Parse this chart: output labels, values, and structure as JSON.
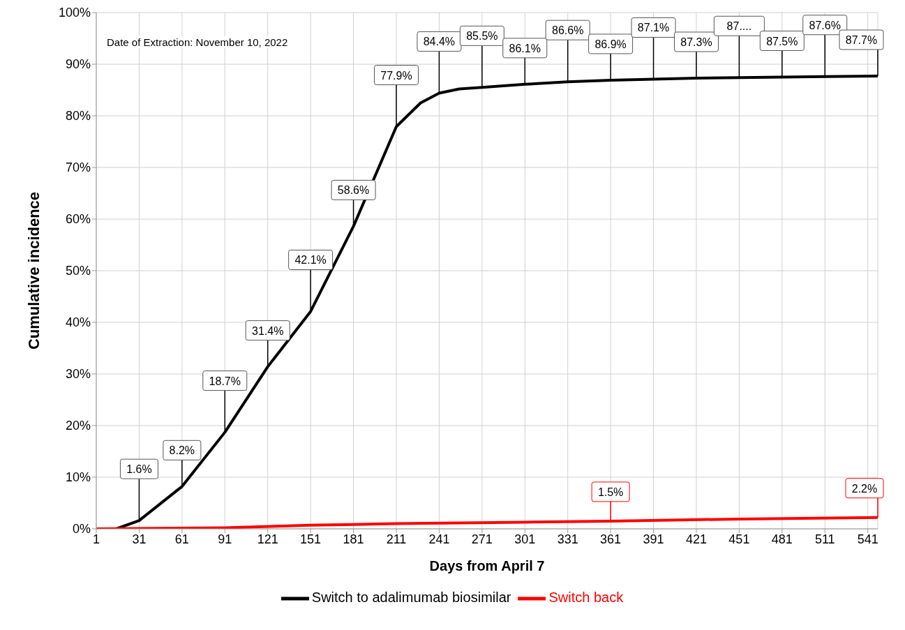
{
  "chart_data": {
    "type": "line",
    "xlabel": "Days from April 7",
    "ylabel": "Cumulative incidence",
    "annotations": [
      "Date of Extraction: November 10, 2022"
    ],
    "xlim": [
      1,
      548
    ],
    "xticks": [
      1,
      31,
      61,
      91,
      121,
      151,
      181,
      211,
      241,
      271,
      301,
      331,
      361,
      391,
      421,
      451,
      481,
      511,
      541
    ],
    "ylim": [
      0,
      100
    ],
    "yticks": [
      {
        "value": 0,
        "label": "0%"
      },
      {
        "value": 10,
        "label": "10%"
      },
      {
        "value": 20,
        "label": "20%"
      },
      {
        "value": 30,
        "label": "30%"
      },
      {
        "value": 40,
        "label": "40%"
      },
      {
        "value": 50,
        "label": "50%"
      },
      {
        "value": 60,
        "label": "60%"
      },
      {
        "value": 70,
        "label": "70%"
      },
      {
        "value": 80,
        "label": "80%"
      },
      {
        "value": 90,
        "label": "90%"
      },
      {
        "value": 100,
        "label": "100%"
      }
    ],
    "grid": true,
    "legend": "bottom",
    "marker": "none",
    "line_style": "solid",
    "series": [
      {
        "name": "Switch to adalimumab biosimilar",
        "color": "#000000",
        "x": [
          1,
          15,
          31,
          61,
          91,
          121,
          151,
          181,
          211,
          228,
          241,
          255,
          271,
          301,
          331,
          361,
          391,
          421,
          451,
          481,
          511,
          548
        ],
        "values": [
          0,
          0,
          1.6,
          8.2,
          18.7,
          31.4,
          42.1,
          58.6,
          77.9,
          82.5,
          84.4,
          85.2,
          85.5,
          86.1,
          86.6,
          86.9,
          87.1,
          87.3,
          87.4,
          87.5,
          87.6,
          87.7
        ],
        "value_labels": [
          null,
          null,
          "1.6%",
          "8.2%",
          "18.7%",
          "31.4%",
          "42.1%",
          "58.6%",
          "77.9%",
          null,
          "84.4%",
          null,
          "85.5%",
          "86.1%",
          "86.6%",
          "86.9%",
          "87.1%",
          "87.3%",
          "87....",
          "87.5%",
          "87.6%",
          "87.7%"
        ]
      },
      {
        "name": "Switch back",
        "color": "#ff0000",
        "x": [
          1,
          91,
          151,
          211,
          301,
          361,
          451,
          548
        ],
        "values": [
          0,
          0.2,
          0.7,
          1.0,
          1.3,
          1.5,
          1.9,
          2.2
        ],
        "value_labels": [
          null,
          null,
          null,
          null,
          null,
          "1.5%",
          null,
          "2.2%"
        ]
      }
    ]
  }
}
